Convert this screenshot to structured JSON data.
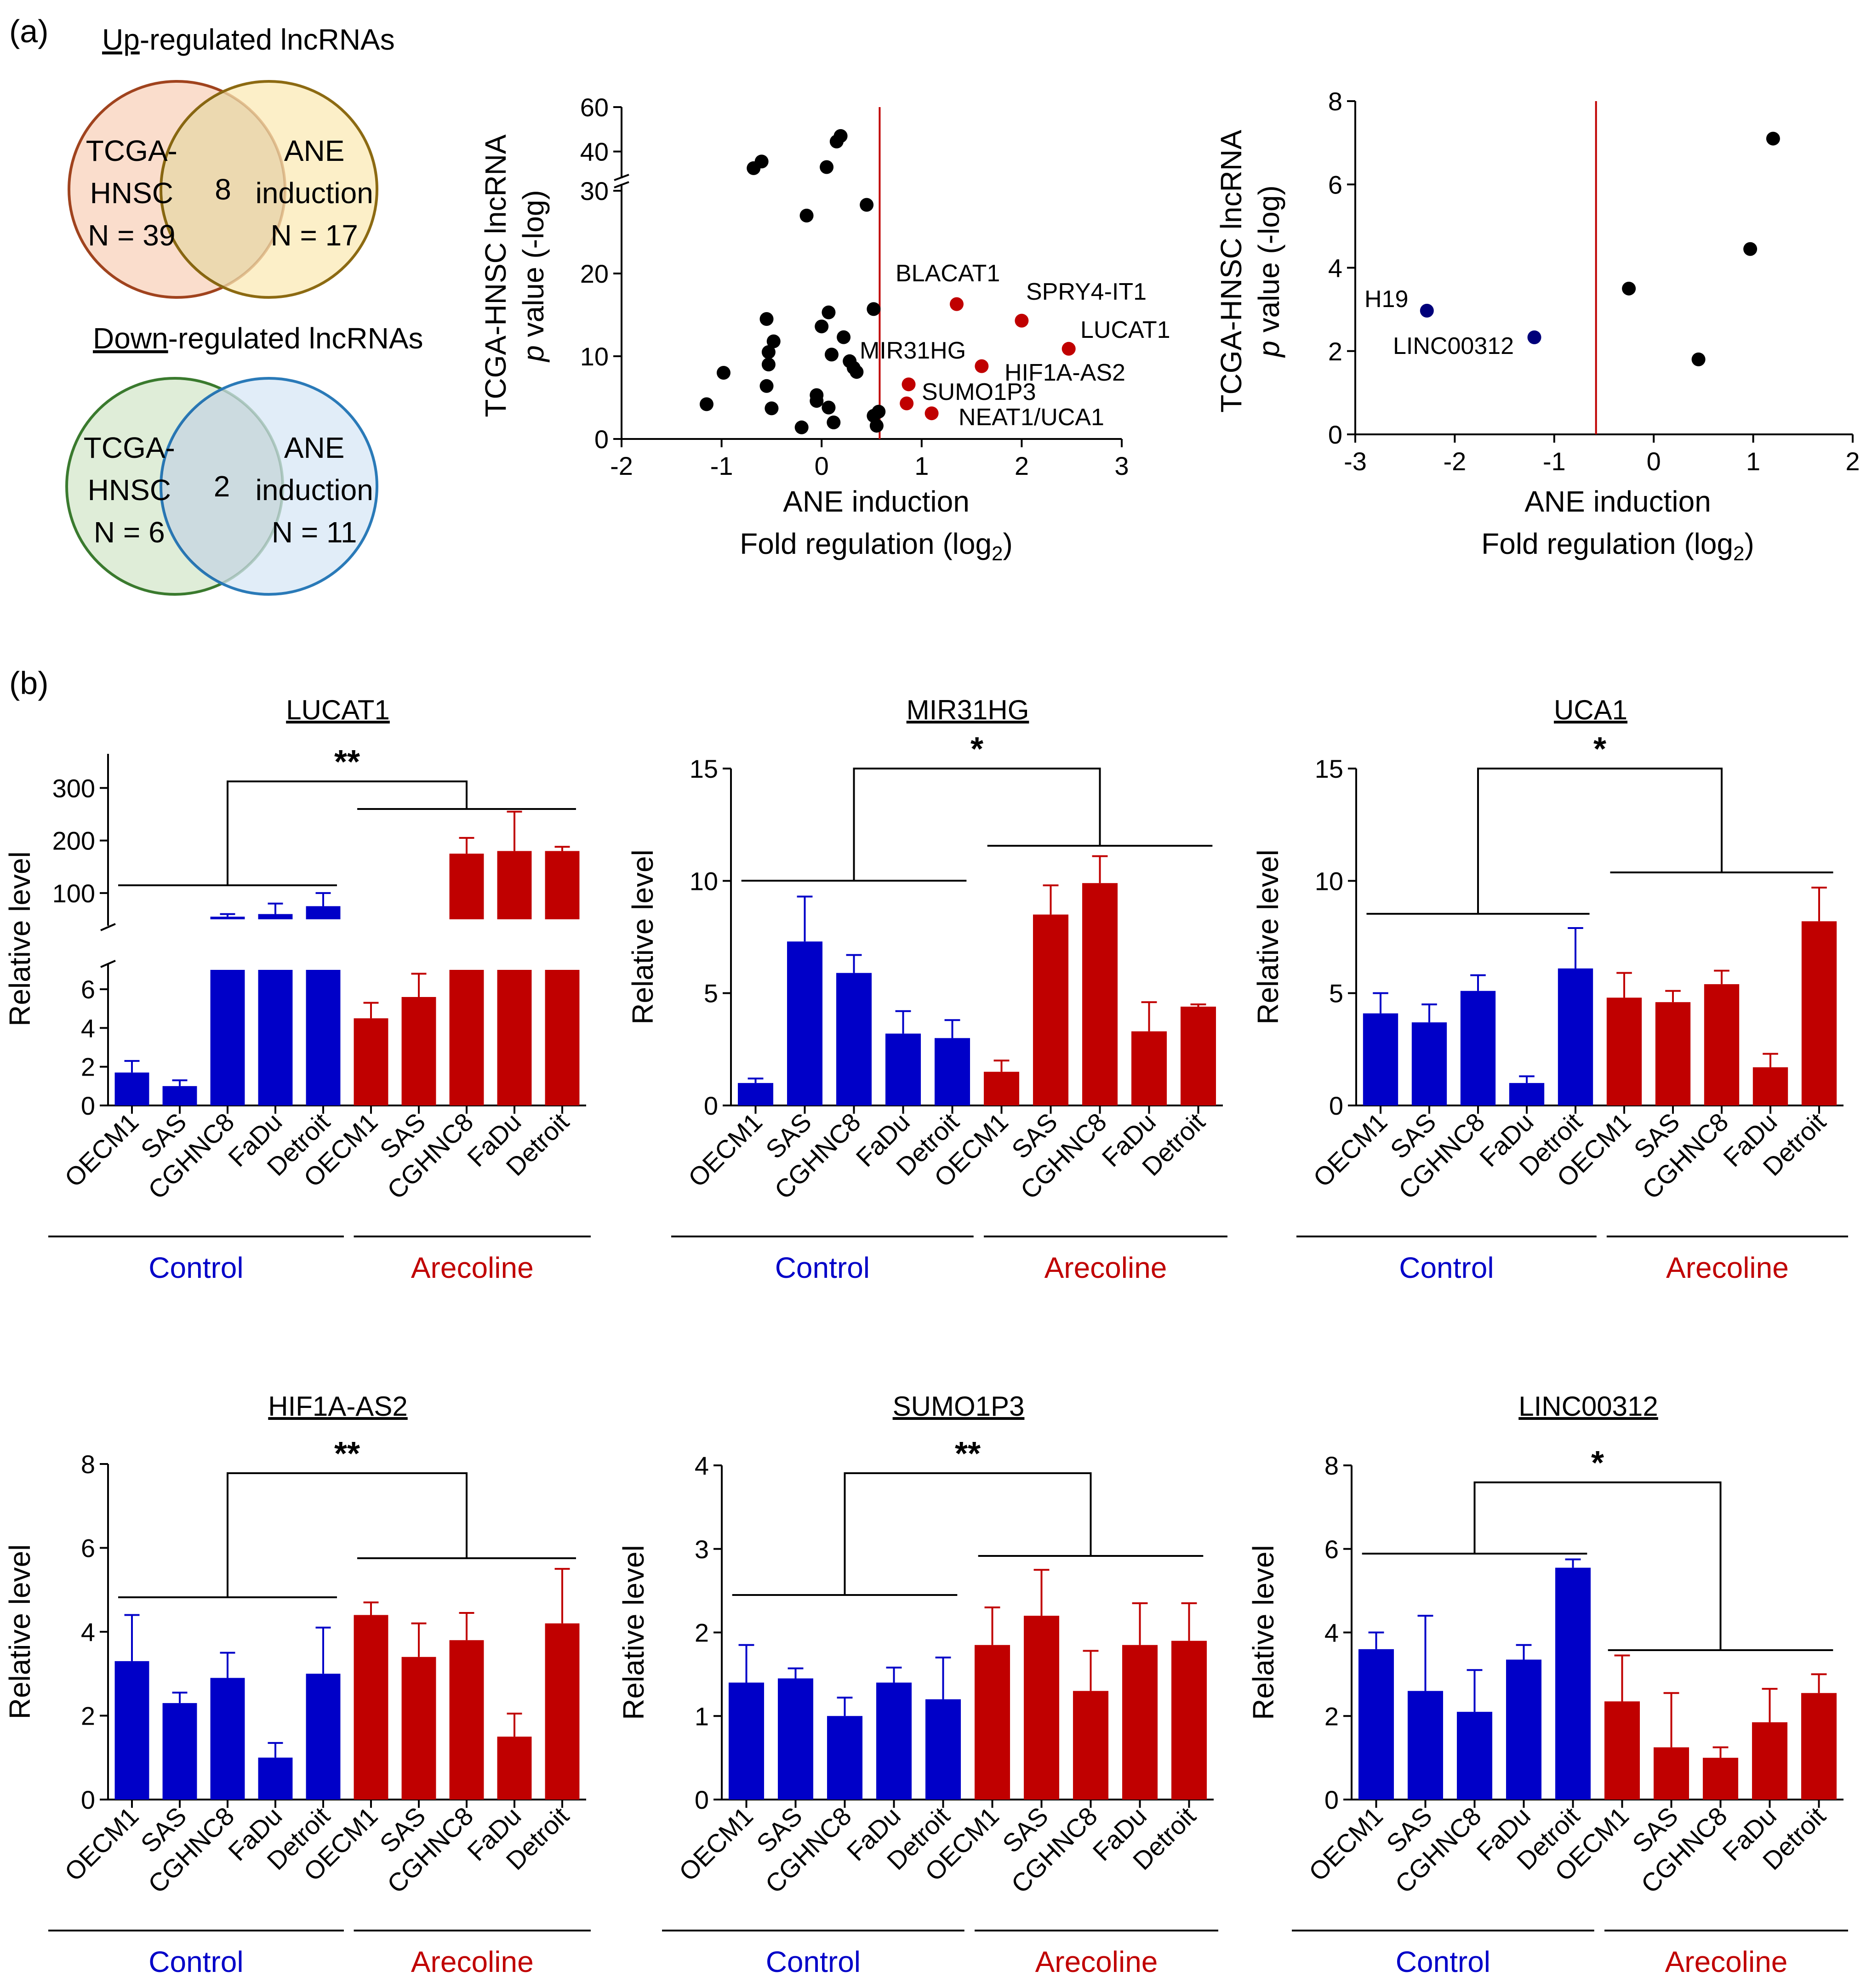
{
  "figure": {
    "panel_a_label": "(a)",
    "panel_b_label": "(b)"
  },
  "colors": {
    "control": "#0000c8",
    "arecoline": "#c00000",
    "line": "#000000",
    "dot_black": "#000000",
    "dot_red": "#c00000",
    "dot_blue": "#00007a"
  },
  "venn_up": {
    "title_underlined": "Up",
    "title_rest": "-regulated lncRNAs",
    "left": {
      "lines": [
        "TCGA-",
        "HNSC",
        "N = 39"
      ],
      "fill": "#f9d9c6",
      "stroke": "#a0431e"
    },
    "right": {
      "lines": [
        "ANE",
        "induction",
        "N = 17"
      ],
      "fill": "#fbe9b6",
      "stroke": "#8c6a12"
    },
    "overlap": "8"
  },
  "venn_down": {
    "title_underlined": "Down",
    "title_rest": "-regulated lncRNAs",
    "left": {
      "lines": [
        "TCGA-",
        "HNSC",
        "N = 6"
      ],
      "fill": "#dcebd4",
      "stroke": "#3a7a2e"
    },
    "right": {
      "lines": [
        "ANE",
        "induction",
        "N = 11"
      ],
      "fill": "#d7e7f6",
      "stroke": "#2a7ab8"
    },
    "overlap": "2"
  },
  "chart_data": [
    {
      "id": "scatter_up",
      "type": "scatter",
      "title": "",
      "xlabel": "ANE induction",
      "xlabel2_main": "Fold regulation (log",
      "xlabel2_sub": "2",
      "xlabel2_tail": ")",
      "ylabel_line1": "TCGA-HNSC lncRNA",
      "ylabel_line2_italic": "p",
      "ylabel_line2_rest": " value (-log)",
      "xlim": [
        -2,
        3
      ],
      "xticks": [
        "-2",
        "-1",
        "0",
        "1",
        "2",
        "3"
      ],
      "ylim_lower": [
        0,
        30
      ],
      "yticks_lower": [
        "0",
        "10",
        "20",
        "30"
      ],
      "ylim_upper": [
        30,
        60
      ],
      "yticks_upper": [
        "40",
        "60"
      ],
      "cutoff_x": 0.58,
      "points_black": [
        {
          "x": -1.15,
          "y": 4.2
        },
        {
          "x": -0.98,
          "y": 8.0
        },
        {
          "x": -0.68,
          "y": 32.5
        },
        {
          "x": -0.6,
          "y": 35.5
        },
        {
          "x": -0.55,
          "y": 14.5
        },
        {
          "x": -0.55,
          "y": 6.4
        },
        {
          "x": -0.53,
          "y": 10.5
        },
        {
          "x": -0.53,
          "y": 9.0
        },
        {
          "x": -0.48,
          "y": 11.8
        },
        {
          "x": -0.5,
          "y": 3.7
        },
        {
          "x": -0.2,
          "y": 1.4
        },
        {
          "x": -0.15,
          "y": 27.0
        },
        {
          "x": -0.05,
          "y": 5.3
        },
        {
          "x": -0.05,
          "y": 4.6
        },
        {
          "x": 0.0,
          "y": 13.6
        },
        {
          "x": 0.05,
          "y": 33.0
        },
        {
          "x": 0.07,
          "y": 15.3
        },
        {
          "x": 0.07,
          "y": 3.8
        },
        {
          "x": 0.1,
          "y": 10.2
        },
        {
          "x": 0.12,
          "y": 2.0
        },
        {
          "x": 0.15,
          "y": 44.5
        },
        {
          "x": 0.19,
          "y": 47.0
        },
        {
          "x": 0.22,
          "y": 12.3
        },
        {
          "x": 0.28,
          "y": 9.4
        },
        {
          "x": 0.32,
          "y": 8.6
        },
        {
          "x": 0.35,
          "y": 8.1
        },
        {
          "x": 0.45,
          "y": 28.3
        },
        {
          "x": 0.52,
          "y": 15.7
        },
        {
          "x": 0.52,
          "y": 2.8
        },
        {
          "x": 0.55,
          "y": 1.6
        },
        {
          "x": 0.57,
          "y": 3.3
        }
      ],
      "points_red": [
        {
          "x": 0.85,
          "y": 4.3,
          "label": "SUMO1P3"
        },
        {
          "x": 0.87,
          "y": 6.6,
          "label": "MIR31HG"
        },
        {
          "x": 1.1,
          "y": 3.1,
          "label": "NEAT1/UCA1"
        },
        {
          "x": 1.35,
          "y": 16.3,
          "label": "BLACAT1"
        },
        {
          "x": 1.6,
          "y": 8.8,
          "label": "HIF1A-AS2"
        },
        {
          "x": 2.0,
          "y": 14.3,
          "label": "SPRY4-IT1"
        },
        {
          "x": 2.47,
          "y": 10.9,
          "label": "LUCAT1"
        }
      ]
    },
    {
      "id": "scatter_down",
      "type": "scatter",
      "title": "",
      "xlabel": "ANE induction",
      "xlabel2_main": "Fold regulation (log",
      "xlabel2_sub": "2",
      "xlabel2_tail": ")",
      "ylabel_line1": "TCGA-HNSC lncRNA",
      "ylabel_line2_italic": "p",
      "ylabel_line2_rest": " value (-log)",
      "xlim": [
        -3,
        2
      ],
      "xticks": [
        "-3",
        "-2",
        "-1",
        "0",
        "1",
        "2"
      ],
      "ylim": [
        0,
        8
      ],
      "yticks": [
        "0",
        "2",
        "4",
        "6",
        "8"
      ],
      "cutoff_x": -0.58,
      "points_black": [
        {
          "x": -0.25,
          "y": 3.5
        },
        {
          "x": 0.45,
          "y": 1.8
        },
        {
          "x": 0.97,
          "y": 4.45
        },
        {
          "x": 1.2,
          "y": 7.1
        }
      ],
      "points_blue": [
        {
          "x": -2.28,
          "y": 2.97,
          "label": "H19"
        },
        {
          "x": -1.2,
          "y": 2.33,
          "label": "LINC00312"
        }
      ]
    },
    {
      "id": "lucat1",
      "type": "bar",
      "title": "LUCAT1",
      "ylabel": "Relative level",
      "categories": [
        "OECM1",
        "SAS",
        "CGHNC8",
        "FaDu",
        "Detroit",
        "OECM1",
        "SAS",
        "CGHNC8",
        "FaDu",
        "Detroit"
      ],
      "group_labels": [
        "Control",
        "Arecoline"
      ],
      "broken_axis": true,
      "yticks_lower": [
        "0",
        "2",
        "4",
        "6"
      ],
      "yticks_upper": [
        "100",
        "200",
        "300"
      ],
      "ylim_lower": [
        0,
        7
      ],
      "ylim_upper": [
        50,
        330
      ],
      "values": [
        1.7,
        1.0,
        55,
        60,
        75,
        4.5,
        5.6,
        175,
        180,
        180
      ],
      "errors": [
        0.6,
        0.3,
        5,
        20,
        25,
        0.8,
        1.2,
        30,
        75,
        8
      ],
      "significance": "**"
    },
    {
      "id": "mir31hg",
      "type": "bar",
      "title": "MIR31HG",
      "ylabel": "Relative level",
      "categories": [
        "OECM1",
        "SAS",
        "CGHNC8",
        "FaDu",
        "Detroit",
        "OECM1",
        "SAS",
        "CGHNC8",
        "FaDu",
        "Detroit"
      ],
      "group_labels": [
        "Control",
        "Arecoline"
      ],
      "ylim": [
        0,
        15
      ],
      "yticks": [
        "0",
        "5",
        "10",
        "15"
      ],
      "values": [
        1.0,
        7.3,
        5.9,
        3.2,
        3.0,
        1.5,
        8.5,
        9.9,
        3.3,
        4.4
      ],
      "errors": [
        0.2,
        2.0,
        0.8,
        1.0,
        0.8,
        0.5,
        1.3,
        1.2,
        1.3,
        0.1
      ],
      "significance": "*"
    },
    {
      "id": "uca1",
      "type": "bar",
      "title": "UCA1",
      "ylabel": "Relative level",
      "categories": [
        "OECM1",
        "SAS",
        "CGHNC8",
        "FaDu",
        "Detroit",
        "OECM1",
        "SAS",
        "CGHNC8",
        "FaDu",
        "Detroit"
      ],
      "group_labels": [
        "Control",
        "Arecoline"
      ],
      "ylim": [
        0,
        15
      ],
      "yticks": [
        "0",
        "5",
        "10",
        "15"
      ],
      "values": [
        4.1,
        3.7,
        5.1,
        1.0,
        6.1,
        4.8,
        4.6,
        5.4,
        1.7,
        8.2
      ],
      "errors": [
        0.9,
        0.8,
        0.7,
        0.3,
        1.8,
        1.1,
        0.5,
        0.6,
        0.6,
        1.5
      ],
      "significance": "*"
    },
    {
      "id": "hif1a_as2",
      "type": "bar",
      "title": "HIF1A-AS2",
      "ylabel": "Relative level",
      "categories": [
        "OECM1",
        "SAS",
        "CGHNC8",
        "FaDu",
        "Detroit",
        "OECM1",
        "SAS",
        "CGHNC8",
        "FaDu",
        "Detroit"
      ],
      "group_labels": [
        "Control",
        "Arecoline"
      ],
      "ylim": [
        0,
        8
      ],
      "yticks": [
        "0",
        "2",
        "4",
        "6",
        "8"
      ],
      "values": [
        3.3,
        2.3,
        2.9,
        1.0,
        3.0,
        4.4,
        3.4,
        3.8,
        1.5,
        4.2
      ],
      "errors": [
        1.1,
        0.25,
        0.6,
        0.35,
        1.1,
        0.3,
        0.8,
        0.65,
        0.55,
        1.3
      ],
      "significance": "**"
    },
    {
      "id": "sumo1p3",
      "type": "bar",
      "title": "SUMO1P3",
      "ylabel": "Relative level",
      "categories": [
        "OECM1",
        "SAS",
        "CGHNC8",
        "FaDu",
        "Detroit",
        "OECM1",
        "SAS",
        "CGHNC8",
        "FaDu",
        "Detroit"
      ],
      "group_labels": [
        "Control",
        "Arecoline"
      ],
      "ylim": [
        0,
        4
      ],
      "yticks": [
        "0",
        "1",
        "2",
        "3",
        "4"
      ],
      "values": [
        1.4,
        1.45,
        1.0,
        1.4,
        1.2,
        1.85,
        2.2,
        1.3,
        1.85,
        1.9
      ],
      "errors": [
        0.45,
        0.12,
        0.22,
        0.18,
        0.5,
        0.45,
        0.55,
        0.48,
        0.5,
        0.45
      ],
      "significance": "**"
    },
    {
      "id": "linc00312",
      "type": "bar",
      "title": "LINC00312",
      "ylabel": "Relative level",
      "categories": [
        "OECM1",
        "SAS",
        "CGHNC8",
        "FaDu",
        "Detroit",
        "OECM1",
        "SAS",
        "CGHNC8",
        "FaDu",
        "Detroit"
      ],
      "group_labels": [
        "Control",
        "Arecoline"
      ],
      "ylim": [
        0,
        8
      ],
      "yticks": [
        "0",
        "2",
        "4",
        "6",
        "8"
      ],
      "values": [
        3.6,
        2.6,
        2.1,
        3.35,
        5.55,
        2.35,
        1.25,
        1.0,
        1.85,
        2.55
      ],
      "errors": [
        0.4,
        1.8,
        1.0,
        0.35,
        0.2,
        1.1,
        1.3,
        0.25,
        0.8,
        0.45
      ],
      "significance": "*"
    }
  ]
}
